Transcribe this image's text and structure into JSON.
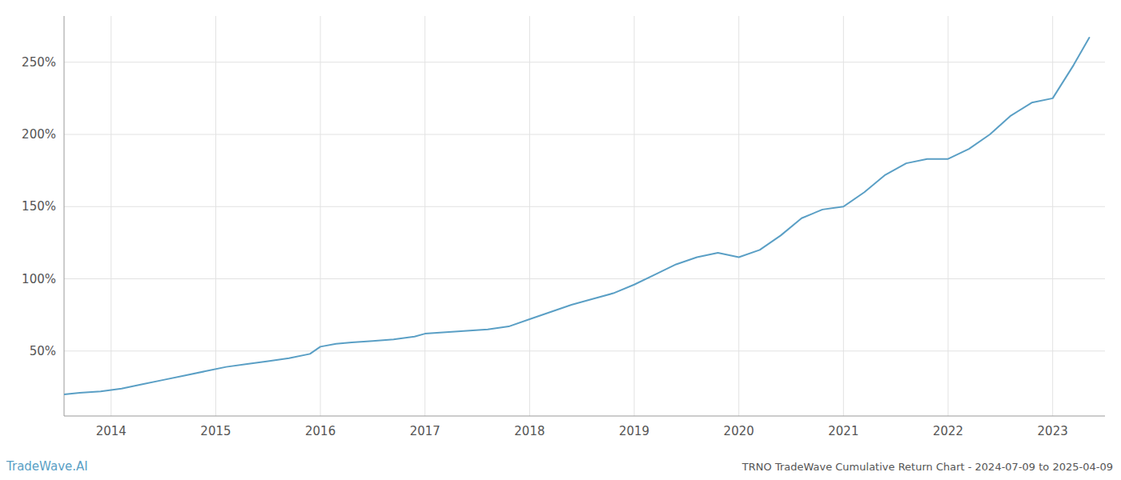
{
  "chart_data": {
    "type": "line",
    "title": "TRNO TradeWave Cumulative Return Chart - 2024-07-09 to 2025-04-09",
    "annotations": [
      "TradeWave.AI"
    ],
    "color": "#5a9fc5",
    "grid": true,
    "x": [
      2013.55,
      2013.7,
      2013.9,
      2014.1,
      2014.3,
      2014.5,
      2014.7,
      2014.9,
      2015.1,
      2015.3,
      2015.5,
      2015.7,
      2015.9,
      2016.0,
      2016.15,
      2016.3,
      2016.5,
      2016.7,
      2016.9,
      2017.0,
      2017.2,
      2017.4,
      2017.6,
      2017.8,
      2018.0,
      2018.2,
      2018.4,
      2018.6,
      2018.8,
      2019.0,
      2019.2,
      2019.4,
      2019.6,
      2019.8,
      2020.0,
      2020.2,
      2020.4,
      2020.6,
      2020.8,
      2021.0,
      2021.2,
      2021.4,
      2021.6,
      2021.8,
      2022.0,
      2022.2,
      2022.4,
      2022.6,
      2022.8,
      2023.0,
      2023.2,
      2023.35
    ],
    "values": [
      20,
      21,
      22,
      24,
      27,
      30,
      33,
      36,
      39,
      41,
      43,
      45,
      48,
      53,
      55,
      56,
      57,
      58,
      60,
      62,
      63,
      64,
      65,
      67,
      72,
      77,
      82,
      86,
      90,
      96,
      103,
      110,
      115,
      118,
      115,
      120,
      130,
      142,
      148,
      150,
      160,
      172,
      180,
      183,
      183,
      190,
      200,
      213,
      222,
      225,
      248,
      267
    ],
    "xlim": [
      2013.55,
      2023.5
    ],
    "xticks": [
      2014,
      2015,
      2016,
      2017,
      2018,
      2019,
      2020,
      2021,
      2022,
      2023
    ],
    "ylim": [
      5,
      282
    ],
    "yticks": [
      {
        "value": 50,
        "label": "50%"
      },
      {
        "value": 100,
        "label": "100%"
      },
      {
        "value": 150,
        "label": "150%"
      },
      {
        "value": 200,
        "label": "200%"
      },
      {
        "value": 250,
        "label": "250%"
      }
    ]
  }
}
